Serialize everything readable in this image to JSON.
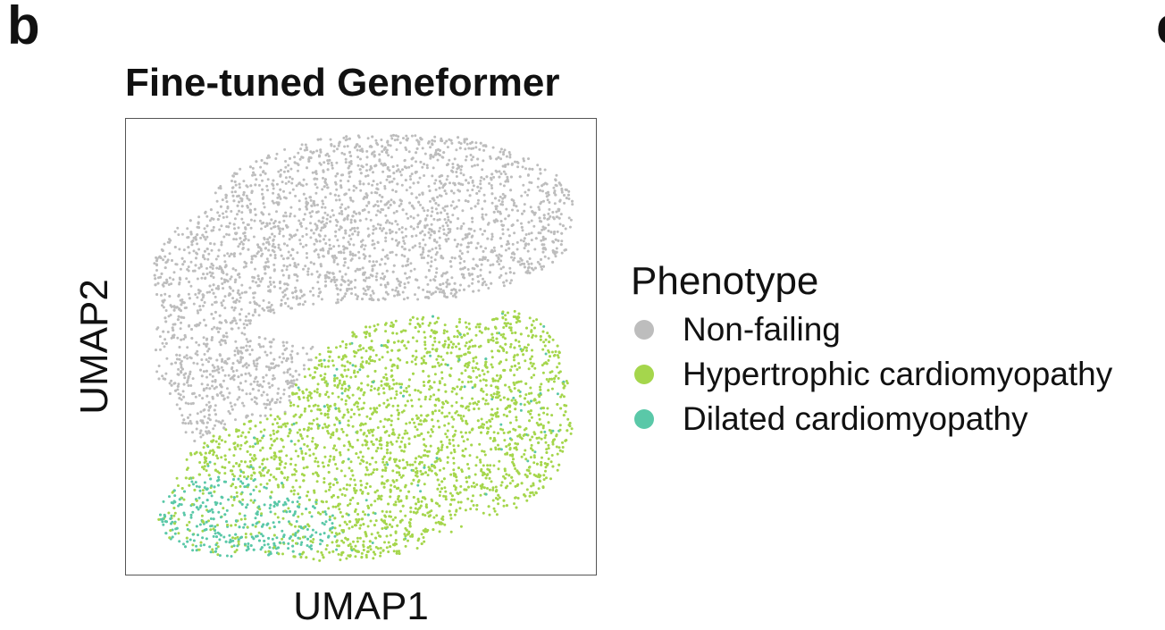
{
  "panel": {
    "letter": "b",
    "next_letter": "c"
  },
  "chart_data": {
    "type": "scatter",
    "title": "Fine-tuned Geneformer",
    "xlabel": "UMAP1",
    "ylabel": "UMAP2",
    "xlim": [
      0,
      10
    ],
    "ylim": [
      0,
      10
    ],
    "grid": false,
    "legend": {
      "title": "Phenotype",
      "placement": "right"
    },
    "series": [
      {
        "name": "Non-failing",
        "color": "#bdbdbd"
      },
      {
        "name": "Hypertrophic cardiomyopathy",
        "color": "#a5d64c"
      },
      {
        "name": "Dilated cardiomyopathy",
        "color": "#5ac8a8"
      }
    ]
  }
}
